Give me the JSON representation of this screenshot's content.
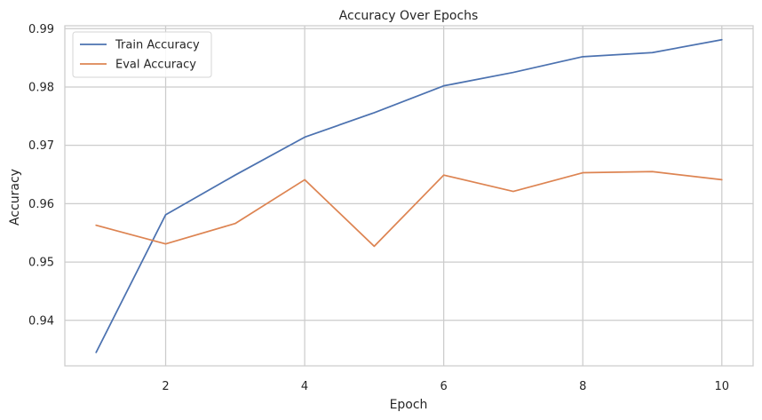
{
  "chart_data": {
    "type": "line",
    "title": "Accuracy Over Epochs",
    "xlabel": "Epoch",
    "ylabel": "Accuracy",
    "x": [
      1,
      2,
      3,
      4,
      5,
      6,
      7,
      8,
      9,
      10
    ],
    "xlim": [
      0.55,
      10.45
    ],
    "ylim": [
      0.9322,
      0.9905
    ],
    "xticks": [
      2,
      4,
      6,
      8,
      10
    ],
    "yticks": [
      0.94,
      0.95,
      0.96,
      0.97,
      0.98,
      0.99
    ],
    "grid": true,
    "legend_position": "top-left",
    "series": [
      {
        "name": "Train Accuracy",
        "color": "#4c72b0",
        "values": [
          0.9345,
          0.9581,
          0.9649,
          0.9714,
          0.9756,
          0.9802,
          0.9825,
          0.9852,
          0.9859,
          0.9881
        ]
      },
      {
        "name": "Eval Accuracy",
        "color": "#dd8452",
        "values": [
          0.9563,
          0.9531,
          0.9566,
          0.9641,
          0.9527,
          0.9649,
          0.9621,
          0.9653,
          0.9655,
          0.9641
        ]
      }
    ]
  }
}
